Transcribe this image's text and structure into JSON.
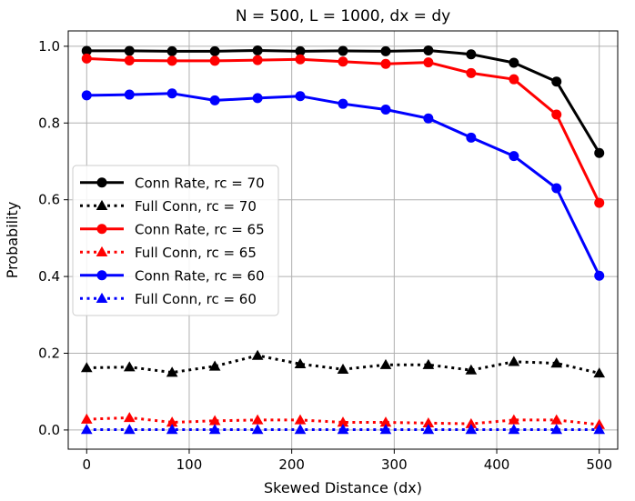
{
  "chart_data": {
    "type": "line",
    "title": "N = 500, L = 1000, dx = dy",
    "xlabel": "Skewed Distance (dx)",
    "ylabel": "Probability",
    "xlim": [
      -18,
      518
    ],
    "ylim": [
      -0.05,
      1.04
    ],
    "xticks": [
      0,
      100,
      200,
      300,
      400,
      500
    ],
    "yticks": [
      0.0,
      0.2,
      0.4,
      0.6,
      0.8,
      1.0
    ],
    "xtick_labels": [
      "0",
      "100",
      "200",
      "300",
      "400",
      "500"
    ],
    "ytick_labels": [
      "0.0",
      "0.2",
      "0.4",
      "0.6",
      "0.8",
      "1.0"
    ],
    "grid": true,
    "legend_position": "center-left",
    "x": [
      0,
      41.7,
      83.3,
      125,
      166.7,
      208.3,
      250,
      291.7,
      333.3,
      375,
      416.7,
      458.3,
      500
    ],
    "series": [
      {
        "name": "Conn Rate, rc = 70",
        "color": "#000000",
        "linestyle": "solid",
        "marker": "circle",
        "values": [
          0.988,
          0.988,
          0.987,
          0.987,
          0.989,
          0.987,
          0.988,
          0.987,
          0.989,
          0.979,
          0.957,
          0.908,
          0.722
        ]
      },
      {
        "name": "Full Conn, rc = 70",
        "color": "#000000",
        "linestyle": "dotted",
        "marker": "triangle",
        "values": [
          0.162,
          0.164,
          0.15,
          0.166,
          0.194,
          0.172,
          0.158,
          0.17,
          0.17,
          0.156,
          0.178,
          0.174,
          0.148
        ]
      },
      {
        "name": "Conn Rate, rc = 65",
        "color": "#ff0000",
        "linestyle": "solid",
        "marker": "circle",
        "values": [
          0.968,
          0.963,
          0.962,
          0.962,
          0.964,
          0.966,
          0.96,
          0.954,
          0.958,
          0.93,
          0.914,
          0.822,
          0.592
        ]
      },
      {
        "name": "Full Conn, rc = 65",
        "color": "#ff0000",
        "linestyle": "dotted",
        "marker": "triangle",
        "values": [
          0.028,
          0.032,
          0.02,
          0.024,
          0.026,
          0.026,
          0.02,
          0.02,
          0.018,
          0.016,
          0.026,
          0.026,
          0.014
        ]
      },
      {
        "name": "Conn Rate, rc = 60",
        "color": "#0000ff",
        "linestyle": "solid",
        "marker": "circle",
        "values": [
          0.872,
          0.874,
          0.877,
          0.859,
          0.865,
          0.87,
          0.85,
          0.835,
          0.812,
          0.762,
          0.714,
          0.63,
          0.402
        ]
      },
      {
        "name": "Full Conn, rc = 60",
        "color": "#0000ff",
        "linestyle": "dotted",
        "marker": "triangle",
        "values": [
          0.001,
          0.001,
          0.001,
          0.001,
          0.001,
          0.001,
          0.001,
          0.001,
          0.001,
          0.001,
          0.001,
          0.001,
          0.001
        ]
      }
    ]
  }
}
